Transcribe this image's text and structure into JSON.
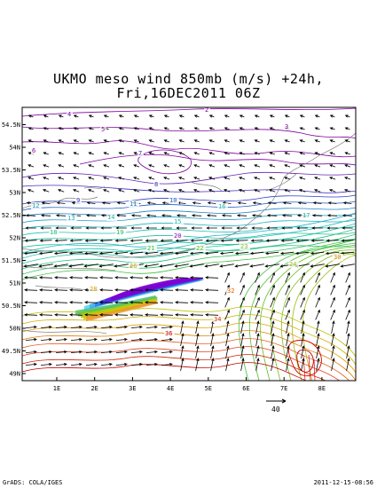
{
  "title_line1": "UKMO meso wind 850mb (m/s)  +24h,",
  "title_line2": "Fri,16DEC2011 06Z",
  "x_ticks": [
    "1E",
    "2E",
    "3E",
    "4E",
    "5E",
    "6E",
    "7E",
    "8E"
  ],
  "y_ticks": [
    "54.5N",
    "54N",
    "53.5N",
    "53N",
    "52.5N",
    "52N",
    "51.5N",
    "51N",
    "50.5N",
    "50N",
    "49.5N",
    "49N"
  ],
  "vector_scale_label": "40",
  "footer_left": "GrADS: COLA/IGES",
  "footer_right": "2011-12-15-08:56",
  "contour_labels": [
    {
      "text": "2",
      "c": "#8000a0"
    },
    {
      "text": "3",
      "c": "#8000a0"
    },
    {
      "text": "4",
      "c": "#8000a0"
    },
    {
      "text": "5",
      "c": "#8000a0"
    },
    {
      "text": "6",
      "c": "#8000a0"
    },
    {
      "text": "7",
      "c": "#3030c0"
    },
    {
      "text": "8",
      "c": "#3030c0"
    },
    {
      "text": "9",
      "c": "#3030c0"
    },
    {
      "text": "10",
      "c": "#2060c0"
    },
    {
      "text": "11",
      "c": "#2080c0"
    },
    {
      "text": "12",
      "c": "#20a0c0"
    },
    {
      "text": "13",
      "c": "#20b0c0"
    },
    {
      "text": "14",
      "c": "#20b0b0"
    },
    {
      "text": "15",
      "c": "#20c0b0"
    },
    {
      "text": "16",
      "c": "#20c0a0"
    },
    {
      "text": "17",
      "c": "#20b090"
    },
    {
      "text": "18",
      "c": "#20c080"
    },
    {
      "text": "19",
      "c": "#20c060"
    },
    {
      "text": "20",
      "c": "#a000c0"
    },
    {
      "text": "21",
      "c": "#40c040"
    },
    {
      "text": "22",
      "c": "#60c020"
    },
    {
      "text": "23",
      "c": "#80c020"
    },
    {
      "text": "24",
      "c": "#a0c010"
    },
    {
      "text": "26",
      "c": "#c0b000"
    },
    {
      "text": "28",
      "c": "#d0a000"
    },
    {
      "text": "30",
      "c": "#e08000"
    },
    {
      "text": "32",
      "c": "#e06000"
    },
    {
      "text": "34",
      "c": "#d03000"
    },
    {
      "text": "36",
      "c": "#c00000"
    }
  ],
  "colors": {
    "coast": "#808080",
    "frame": "#000000",
    "arrow": "#000000"
  }
}
